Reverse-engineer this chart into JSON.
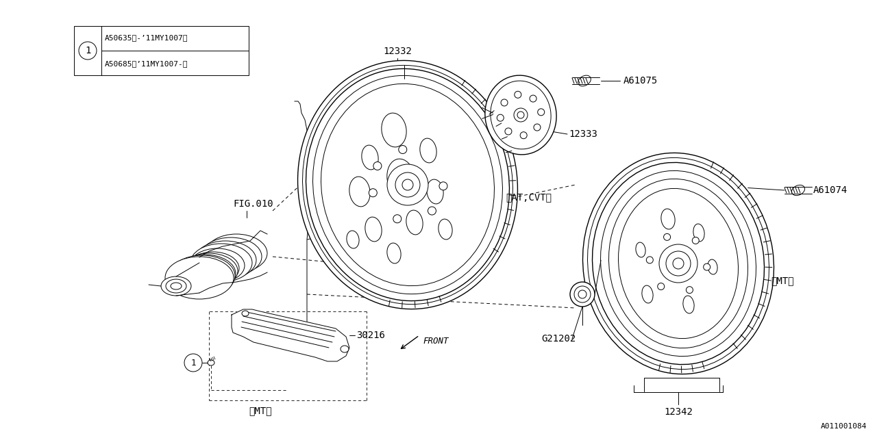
{
  "bg_color": "#ffffff",
  "line_color": "#000000",
  "part_box_line1": "A50635（-’11MY1007）",
  "part_box_line2": "A50685（’11MY1007-）",
  "label_12332": "12332",
  "label_A61075": "A61075",
  "label_12333": "12333",
  "label_AT_CVT": "＜AT,CVT＞",
  "label_A61074": "A61074",
  "label_MT_right": "＜MT＞",
  "label_FIG010": "FIG.010",
  "label_30216": "30216",
  "label_MT_bottom": "＜MT＞",
  "label_G21202": "G21202",
  "label_12342": "12342",
  "label_FRONT": "FRONT",
  "label_A011001084": "A011001084"
}
